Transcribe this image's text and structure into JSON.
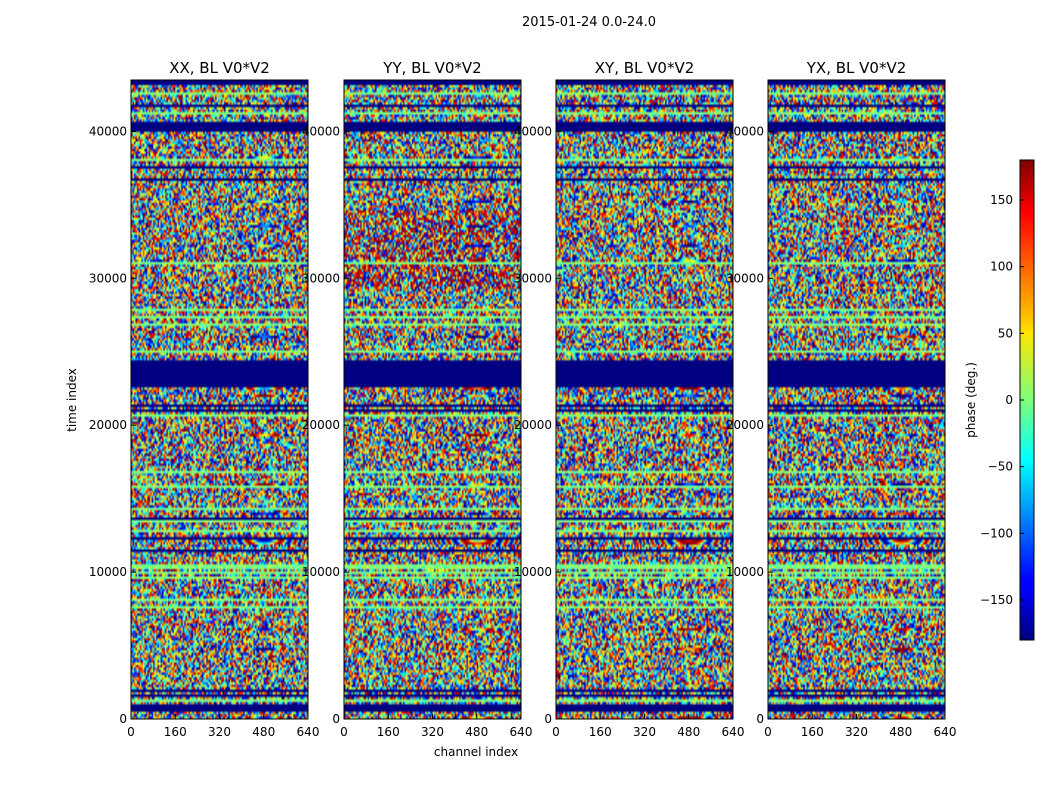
{
  "chart_data": {
    "type": "heatmap",
    "suptitle": "2015-01-24 0.0-24.0",
    "xlabel": "channel index",
    "ylabel": "time index",
    "xlim": [
      0,
      640
    ],
    "ylim": [
      0,
      43500
    ],
    "x_ticks": [
      "0",
      "160",
      "320",
      "480",
      "640"
    ],
    "x_tick_values": [
      0,
      160,
      320,
      480,
      640
    ],
    "y_ticks": [
      "0",
      "10000",
      "20000",
      "30000",
      "40000"
    ],
    "y_tick_values": [
      0,
      10000,
      20000,
      30000,
      40000
    ],
    "colormap": "jet",
    "panels": [
      {
        "title": "XX, BL V0*V2"
      },
      {
        "title": "YY, BL V0*V2"
      },
      {
        "title": "XY, BL V0*V2"
      },
      {
        "title": "YX, BL V0*V2"
      }
    ],
    "colorbar": {
      "label": "phase (deg.)",
      "range": [
        -180,
        180
      ],
      "ticks": [
        "150",
        "100",
        "50",
        "0",
        "−50",
        "−100",
        "−150"
      ],
      "tick_values": [
        150,
        100,
        50,
        0,
        -50,
        -100,
        -150
      ]
    },
    "flagged_time_bands": [
      [
        22600,
        24400
      ],
      [
        40100,
        40700
      ],
      [
        400,
        900
      ]
    ],
    "colors": {
      "flag": "#00007f",
      "frame": "#000000"
    }
  }
}
